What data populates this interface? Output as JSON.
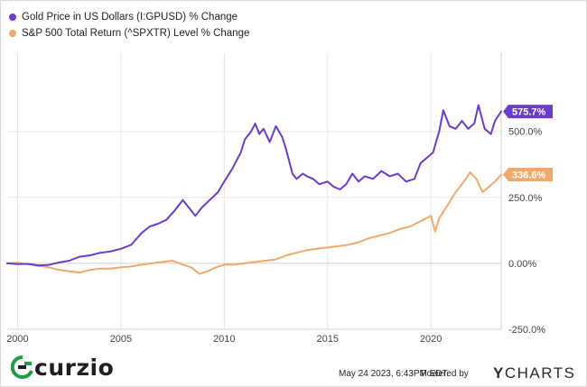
{
  "chart_data": {
    "type": "line",
    "title": "",
    "xlabel": "",
    "ylabel": "",
    "xlim": [
      1999.5,
      2023.4
    ],
    "ylim": [
      -250,
      800
    ],
    "x_ticks": [
      "2000",
      "2005",
      "2010",
      "2015",
      "2020"
    ],
    "x_tick_values": [
      2000,
      2005,
      2010,
      2015,
      2020
    ],
    "y_ticks": [
      "-250.0%",
      "0.00%",
      "250.0%",
      "500.0%"
    ],
    "y_tick_values": [
      -250,
      0,
      250,
      500
    ],
    "grid": true,
    "legend_position": "top-left",
    "series": [
      {
        "name": "Gold Price in US Dollars (I:GPUSD) % Change",
        "color": "#6a3dc8",
        "end_label": "575.7%",
        "x": [
          1999.5,
          2000.0,
          2000.5,
          2001.0,
          2001.5,
          2002.0,
          2002.5,
          2003.0,
          2003.5,
          2004.0,
          2004.5,
          2005.0,
          2005.5,
          2006.0,
          2006.4,
          2006.8,
          2007.2,
          2007.6,
          2008.0,
          2008.2,
          2008.6,
          2008.9,
          2009.3,
          2009.7,
          2010.0,
          2010.4,
          2010.8,
          2011.0,
          2011.3,
          2011.5,
          2011.7,
          2011.9,
          2012.2,
          2012.5,
          2012.8,
          2013.0,
          2013.3,
          2013.5,
          2013.8,
          2014.0,
          2014.3,
          2014.6,
          2015.0,
          2015.3,
          2015.6,
          2015.9,
          2016.2,
          2016.5,
          2016.8,
          2017.2,
          2017.6,
          2018.0,
          2018.4,
          2018.8,
          2019.2,
          2019.5,
          2019.8,
          2020.1,
          2020.4,
          2020.6,
          2020.9,
          2021.2,
          2021.5,
          2021.8,
          2022.1,
          2022.3,
          2022.6,
          2022.9,
          2023.1,
          2023.4
        ],
        "y": [
          0,
          -3,
          -2,
          -8,
          -6,
          3,
          10,
          25,
          30,
          40,
          45,
          55,
          70,
          115,
          140,
          150,
          165,
          200,
          240,
          220,
          180,
          210,
          240,
          270,
          310,
          360,
          420,
          470,
          500,
          530,
          490,
          510,
          460,
          520,
          480,
          430,
          340,
          320,
          340,
          330,
          320,
          300,
          310,
          290,
          280,
          300,
          340,
          310,
          330,
          320,
          350,
          330,
          340,
          310,
          320,
          380,
          400,
          420,
          500,
          580,
          520,
          510,
          540,
          510,
          530,
          600,
          510,
          490,
          540,
          575.7
        ]
      },
      {
        "name": "S&P 500 Total Return (^SPXTR) Level % Change",
        "color": "#f2a869",
        "end_label": "336.6%",
        "x": [
          1999.5,
          2000.0,
          2000.5,
          2001.0,
          2001.5,
          2002.0,
          2002.5,
          2003.0,
          2003.5,
          2004.0,
          2004.5,
          2005.0,
          2005.5,
          2006.0,
          2006.5,
          2007.0,
          2007.5,
          2008.0,
          2008.4,
          2008.8,
          2009.2,
          2009.6,
          2010.0,
          2010.5,
          2011.0,
          2011.5,
          2012.0,
          2012.5,
          2013.0,
          2013.5,
          2014.0,
          2014.5,
          2015.0,
          2015.5,
          2016.0,
          2016.5,
          2017.0,
          2017.5,
          2018.0,
          2018.5,
          2019.0,
          2019.5,
          2020.0,
          2020.2,
          2020.4,
          2020.8,
          2021.2,
          2021.6,
          2021.9,
          2022.2,
          2022.5,
          2022.8,
          2023.1,
          2023.4
        ],
        "y": [
          0,
          2,
          -3,
          -10,
          -15,
          -25,
          -30,
          -35,
          -25,
          -20,
          -20,
          -15,
          -12,
          -5,
          0,
          5,
          10,
          -5,
          -15,
          -40,
          -30,
          -15,
          -5,
          -5,
          0,
          5,
          10,
          15,
          30,
          40,
          50,
          55,
          60,
          65,
          70,
          80,
          95,
          105,
          115,
          130,
          140,
          160,
          180,
          120,
          170,
          220,
          270,
          310,
          345,
          320,
          270,
          290,
          310,
          336.6
        ]
      }
    ]
  },
  "footer": {
    "logo_mark": "@",
    "logo_text": "curzio",
    "timestamp": "May 24 2023, 6:43PM EDT.",
    "powered_by": "Powered by",
    "brand_y": "Y",
    "brand_rest": "CHARTS"
  }
}
